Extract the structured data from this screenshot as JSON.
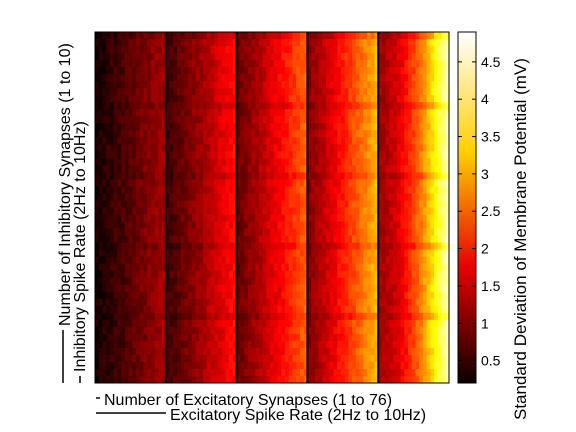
{
  "chart_data": {
    "type": "heatmap",
    "title": "",
    "xlabel_primary": "Number of Excitatory Synapses (1 to 76)",
    "xlabel_secondary": "Excitatory Spike Rate (2Hz to 10Hz)",
    "ylabel_primary": "Number of Inhibitory Synapses (1 to 10)",
    "ylabel_secondary": "Inhibitory Spike Rate (2Hz to 10Hz)",
    "colorbar_label": "Standard Deviation of Membrane Potential (mV)",
    "colorbar_ticks": [
      0.5,
      1,
      1.5,
      2,
      2.5,
      3,
      3.5,
      4,
      4.5
    ],
    "colorbar_ticks_text": [
      "0.5",
      "1",
      "1.5",
      "2",
      "2.5",
      "3",
      "3.5",
      "4",
      "4.5"
    ],
    "zlim": [
      0.2,
      4.9
    ],
    "colormap": "hot",
    "x_blocks": 5,
    "columns_per_block": 76,
    "y_blocks": 5,
    "rows_per_block": 10,
    "block_profile": {
      "description_values_by_block": [
        {
          "block": 1,
          "value_range": [
            0.3,
            1.3
          ]
        },
        {
          "block": 2,
          "value_range": [
            0.6,
            2.0
          ]
        },
        {
          "block": 3,
          "value_range": [
            0.9,
            2.6
          ]
        },
        {
          "block": 4,
          "value_range": [
            1.1,
            3.2
          ]
        },
        {
          "block": 5,
          "value_range": [
            1.3,
            4.6
          ]
        }
      ]
    },
    "grid": false
  }
}
